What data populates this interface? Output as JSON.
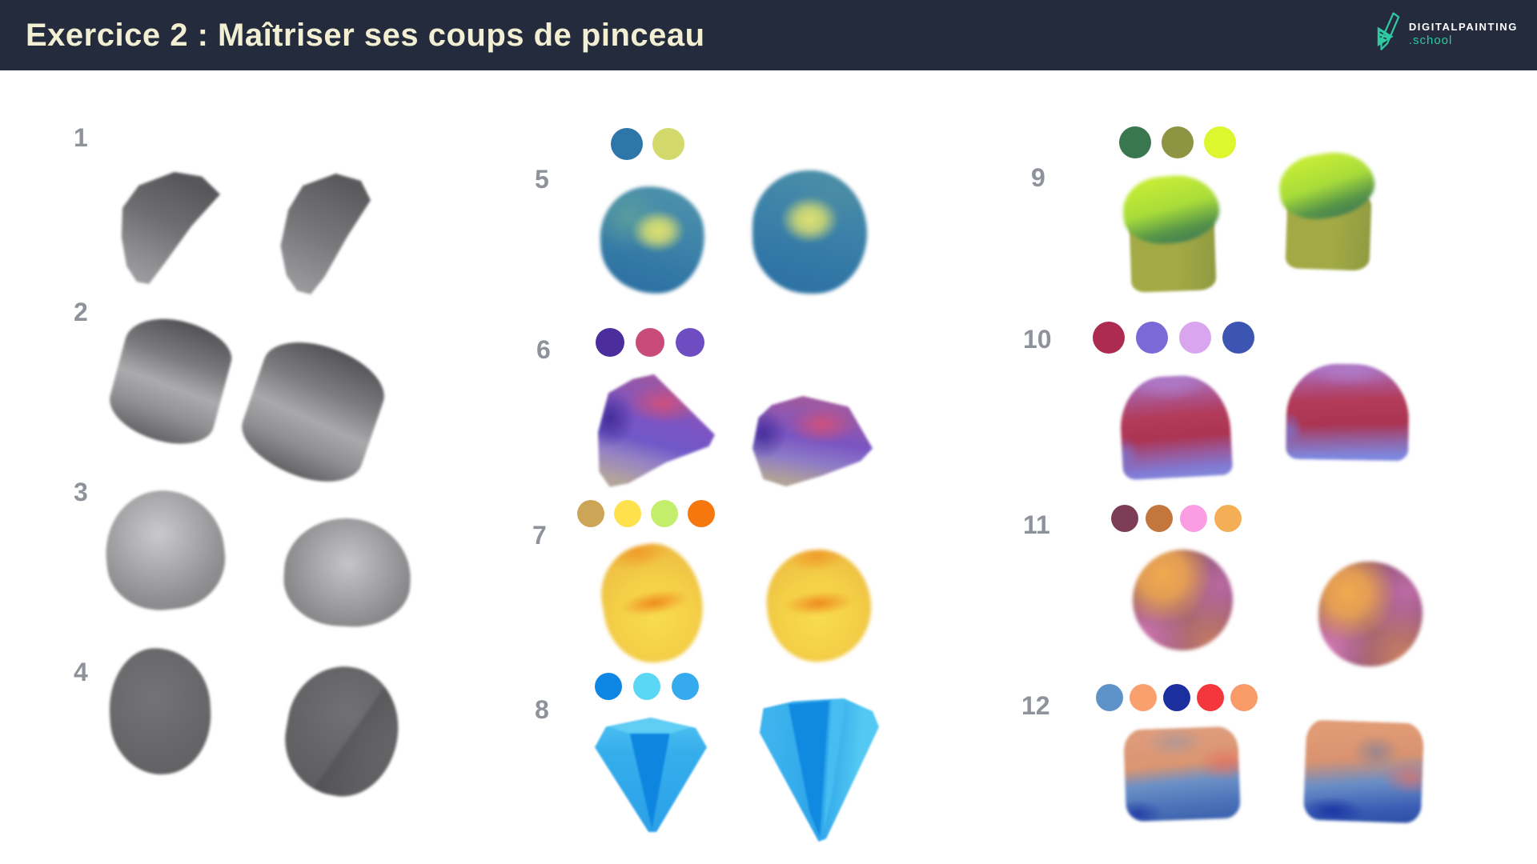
{
  "header": {
    "title": "Exercice 2 : Maîtriser ses coups de pinceau",
    "background": "#242b3c",
    "title_color": "#f2efd3",
    "logo": {
      "name": "DIGITALPAINTING",
      "domain": ".school",
      "accent": "#2fc9a2"
    }
  },
  "exercises": [
    {
      "number": "1",
      "palette": []
    },
    {
      "number": "2",
      "palette": []
    },
    {
      "number": "3",
      "palette": []
    },
    {
      "number": "4",
      "palette": []
    },
    {
      "number": "5",
      "palette": [
        "#2e76aa",
        "#d4d96b"
      ]
    },
    {
      "number": "6",
      "palette": [
        "#4b2d9d",
        "#c94b7a",
        "#6e4cc2"
      ]
    },
    {
      "number": "7",
      "palette": [
        "#cda557",
        "#ffe14d",
        "#c2ee6b",
        "#f5770d"
      ]
    },
    {
      "number": "8",
      "palette": [
        "#0e87e4",
        "#5ad7f2",
        "#35aaec"
      ]
    },
    {
      "number": "9",
      "palette": [
        "#39784e",
        "#8e9442",
        "#ddf62e"
      ]
    },
    {
      "number": "10",
      "palette": [
        "#ad2b50",
        "#7c69d8",
        "#daa5ef",
        "#3c55b2"
      ]
    },
    {
      "number": "11",
      "palette": [
        "#7c3d55",
        "#c3773d",
        "#fb9de2",
        "#f3ae56"
      ]
    },
    {
      "number": "12",
      "palette": [
        "#5e93c9",
        "#f9a06f",
        "#1b2f9e",
        "#f4373c",
        "#f89b69"
      ]
    }
  ]
}
